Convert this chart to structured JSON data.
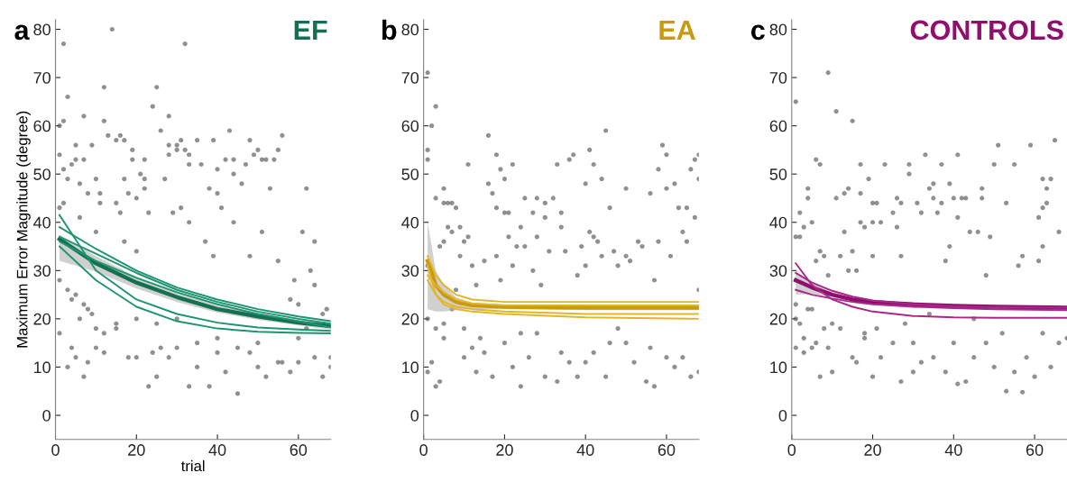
{
  "chart_data": [
    {
      "type": "scatter",
      "title": "EF",
      "ylabel": "Maximum Error Magnitude (degree)",
      "xlabel": "trial",
      "annotations": [
        "a"
      ],
      "xlim": [
        0,
        68
      ],
      "ylim": [
        -5,
        82
      ],
      "xticks": [
        0,
        20,
        40,
        60
      ],
      "yticks": [
        0,
        10,
        20,
        30,
        40,
        50,
        60,
        70,
        80
      ],
      "grid": false,
      "legend": false,
      "series": [
        {
          "marker": "circle",
          "color": "#555555",
          "x": [
            1,
            1,
            1,
            1,
            1,
            2,
            2,
            2,
            2,
            3,
            3,
            3,
            3,
            4,
            4,
            4,
            5,
            5,
            5,
            5,
            6,
            6,
            6,
            7,
            7,
            7,
            7,
            8,
            8,
            8,
            9,
            9,
            10,
            10,
            10,
            11,
            11,
            12,
            12,
            12,
            13,
            14,
            15,
            15,
            15,
            16,
            16,
            17,
            17,
            17,
            18,
            18,
            19,
            19,
            20,
            20,
            21,
            22,
            22,
            22,
            23,
            24,
            24,
            25,
            26,
            26,
            27,
            28,
            28,
            28,
            29,
            30,
            30,
            31,
            31,
            32,
            32,
            33,
            33,
            33,
            35,
            36,
            37,
            38,
            39,
            39,
            40,
            40,
            41,
            42,
            43,
            44,
            44,
            44,
            46,
            47,
            48,
            48,
            49,
            50,
            51,
            51,
            52,
            53,
            54,
            55,
            56,
            55,
            58,
            59,
            60,
            61,
            62,
            63,
            64,
            64,
            66,
            67,
            68,
            68,
            20,
            25,
            30,
            35,
            40,
            42,
            45,
            45,
            48,
            50,
            52,
            55,
            58,
            60,
            62,
            64,
            66,
            30,
            35,
            40,
            50,
            56,
            23,
            38,
            60,
            15,
            12,
            20,
            25,
            10,
            28,
            33
          ],
          "values": [
            60,
            54,
            43,
            28,
            17,
            77,
            61,
            51,
            44,
            66,
            49,
            26,
            10,
            52,
            24,
            14,
            56,
            53,
            25,
            12,
            48,
            41,
            20,
            62,
            53,
            23,
            8,
            46,
            22,
            11,
            56,
            21,
            49,
            38,
            14,
            46,
            44,
            68,
            61,
            13,
            58,
            80,
            57,
            44,
            19,
            58,
            42,
            57,
            49,
            36,
            46,
            12,
            55,
            53,
            45,
            34,
            50,
            53,
            49,
            47,
            42,
            64,
            13,
            68,
            59,
            14,
            49,
            62,
            56,
            54,
            42,
            56,
            55,
            57,
            43,
            77,
            55,
            54,
            52,
            40,
            57,
            52,
            36,
            47,
            57,
            33,
            51,
            46,
            43,
            53,
            59,
            53,
            50,
            40,
            48,
            52,
            57,
            33,
            54,
            55,
            38,
            53,
            53,
            47,
            53,
            55,
            58,
            32,
            24,
            28,
            23,
            38,
            47,
            30,
            36,
            27,
            21,
            22,
            12,
            10,
            12,
            8,
            14,
            10,
            16,
            9,
            4.5,
            14,
            13,
            10,
            8,
            11,
            9,
            11,
            18,
            12,
            8,
            20,
            15,
            13,
            15,
            11,
            6,
            6,
            16,
            18,
            17,
            20,
            19,
            18,
            12,
            6
          ]
        },
        {
          "type": "line",
          "marker": "none",
          "color": "#137050",
          "x": [
            1,
            10,
            20,
            30,
            40,
            50,
            60,
            68
          ],
          "values": [
            36.5,
            31.5,
            27.5,
            24.5,
            22,
            20.5,
            19.2,
            18.5
          ],
          "lower": [
            32,
            29.8,
            26.3,
            23.5,
            21.3,
            19.8,
            18.6,
            17.8
          ],
          "upper": [
            37.5,
            33,
            28.7,
            25.5,
            22.8,
            21.2,
            19.8,
            19.2
          ]
        },
        {
          "type": "line",
          "marker": "none",
          "color": "#1e9470",
          "x": [
            1,
            10,
            20,
            30,
            40,
            50,
            60,
            68
          ],
          "values": [
            41.5,
            30,
            24,
            21,
            19.2,
            18.2,
            17.8,
            17.5
          ]
        },
        {
          "type": "line",
          "marker": "none",
          "color": "#1e9470",
          "x": [
            1,
            10,
            20,
            30,
            40,
            50,
            60,
            68
          ],
          "values": [
            35,
            28,
            22.5,
            19.5,
            18,
            17.3,
            17.1,
            17
          ]
        },
        {
          "type": "line",
          "marker": "none",
          "color": "#1e9470",
          "x": [
            1,
            10,
            20,
            30,
            40,
            50,
            60,
            68
          ],
          "values": [
            39,
            34.5,
            30,
            26.5,
            24,
            22,
            20.5,
            19.5
          ]
        },
        {
          "type": "line",
          "marker": "none",
          "color": "#1e9470",
          "x": [
            1,
            10,
            20,
            30,
            40,
            50,
            60,
            68
          ],
          "values": [
            37,
            33.5,
            29.5,
            26,
            23.5,
            21.5,
            20,
            19
          ]
        },
        {
          "type": "line",
          "marker": "none",
          "color": "#1e9470",
          "x": [
            1,
            10,
            20,
            30,
            40,
            50,
            60,
            68
          ],
          "values": [
            36,
            32,
            28.5,
            25.5,
            23,
            21,
            19.5,
            18.2
          ]
        }
      ]
    },
    {
      "type": "scatter",
      "title": "EA",
      "annotations": [
        "b"
      ],
      "xlim": [
        0,
        68
      ],
      "ylim": [
        -5,
        82
      ],
      "xticks": [
        0,
        20,
        40,
        60
      ],
      "yticks": [
        0,
        10,
        20,
        30,
        40,
        50,
        60,
        70,
        80
      ],
      "grid": false,
      "legend": false,
      "series": [
        {
          "marker": "circle",
          "color": "#555555",
          "x": [
            1,
            1,
            1,
            1,
            1,
            1,
            2,
            2,
            3,
            3,
            3,
            3,
            4,
            4,
            5,
            5,
            5,
            5,
            6,
            6,
            7,
            7,
            7,
            8,
            8,
            9,
            9,
            10,
            10,
            11,
            11,
            12,
            12,
            13,
            13,
            15,
            15,
            16,
            16,
            17,
            18,
            18,
            18,
            19,
            19,
            20,
            20,
            21,
            21,
            22,
            22,
            23,
            24,
            24,
            25,
            25,
            27,
            27,
            28,
            28,
            29,
            30,
            30,
            31,
            32,
            33,
            34,
            34,
            35,
            36,
            37,
            38,
            39,
            40,
            40,
            41,
            41,
            42,
            42,
            43,
            44,
            44,
            45,
            46,
            47,
            48,
            50,
            50,
            51,
            53,
            54,
            56,
            57,
            58,
            58,
            59,
            60,
            60,
            61,
            62,
            63,
            64,
            65,
            65,
            66,
            67,
            67,
            68,
            68,
            68,
            5,
            10,
            14,
            17,
            20,
            22,
            26,
            28,
            30,
            33,
            36,
            38,
            40,
            42,
            45,
            48,
            50,
            52,
            55,
            57,
            60,
            62,
            64,
            66,
            68,
            24,
            34,
            46,
            56
          ],
          "values": [
            71,
            55,
            53,
            31,
            20,
            9,
            60,
            11,
            64,
            45,
            18,
            6,
            35,
            7,
            47,
            44,
            36,
            19,
            44,
            39,
            44,
            38,
            22,
            43,
            26,
            39,
            33,
            36,
            12,
            52,
            37,
            31,
            14,
            27,
            9,
            32,
            13,
            58,
            48,
            46,
            54,
            43,
            33,
            51,
            28,
            49,
            42,
            42,
            37,
            52,
            31,
            35,
            39,
            6,
            45,
            35,
            42,
            30,
            45,
            37,
            27,
            44,
            41,
            34,
            45,
            52,
            42,
            39,
            34,
            53,
            54,
            29,
            35,
            48,
            31,
            55,
            38,
            52,
            37,
            36,
            49,
            33,
            59,
            43,
            34,
            31,
            47,
            33,
            32,
            36,
            35,
            46,
            28,
            51,
            36,
            56,
            54,
            47,
            33,
            48,
            43,
            38,
            43,
            36,
            51,
            53,
            41,
            54,
            49,
            26,
            16,
            18,
            16,
            8,
            15,
            10,
            12,
            17,
            8,
            7,
            11,
            8,
            11,
            13,
            8,
            18,
            15,
            11,
            7,
            6,
            12,
            10,
            12,
            8,
            9,
            17,
            13,
            15,
            14
          ]
        },
        {
          "type": "line",
          "marker": "none",
          "color": "#c99a10",
          "x": [
            1,
            3,
            5,
            8,
            12,
            20,
            40,
            68
          ],
          "values": [
            32,
            27,
            25,
            23.5,
            22.8,
            22.5,
            22.3,
            22.3
          ],
          "lower": [
            22,
            21.5,
            21.5,
            21.8,
            22,
            22,
            21.8,
            21.8
          ],
          "upper": [
            40,
            30,
            27,
            24.5,
            23.3,
            23,
            22.8,
            22.8
          ]
        },
        {
          "type": "line",
          "marker": "none",
          "color": "#e3b52a",
          "x": [
            1,
            3,
            5,
            8,
            12,
            20,
            40,
            68
          ],
          "values": [
            33,
            29,
            27,
            25,
            24,
            23.5,
            23.5,
            23.5
          ]
        },
        {
          "type": "line",
          "marker": "none",
          "color": "#e3b52a",
          "x": [
            1,
            3,
            5,
            8,
            12,
            20,
            40,
            68
          ],
          "values": [
            28,
            25,
            23.5,
            22.5,
            22,
            21.5,
            21,
            21
          ]
        },
        {
          "type": "line",
          "marker": "none",
          "color": "#e3b52a",
          "x": [
            1,
            3,
            5,
            8,
            12,
            20,
            40,
            68
          ],
          "values": [
            31,
            25,
            23,
            22,
            21.5,
            21,
            20.3,
            20
          ]
        },
        {
          "type": "line",
          "marker": "none",
          "color": "#e3b52a",
          "x": [
            1,
            3,
            5,
            8,
            12,
            20,
            40,
            68
          ],
          "values": [
            29,
            27,
            25.5,
            24,
            23.2,
            22.8,
            22.8,
            22.8
          ]
        }
      ]
    },
    {
      "type": "scatter",
      "title": "CONTROLS",
      "annotations": [
        "c"
      ],
      "xlim": [
        0,
        68
      ],
      "ylim": [
        -5,
        82
      ],
      "xticks": [
        0,
        20,
        40,
        60
      ],
      "yticks": [
        0,
        10,
        20,
        30,
        40,
        50,
        60,
        70,
        80
      ],
      "grid": false,
      "legend": false,
      "series": [
        {
          "marker": "circle",
          "color": "#555555",
          "x": [
            1,
            1,
            1,
            1,
            1,
            2,
            2,
            2,
            3,
            3,
            3,
            4,
            4,
            4,
            5,
            5,
            6,
            6,
            6,
            7,
            7,
            7,
            8,
            8,
            9,
            9,
            9,
            10,
            11,
            11,
            12,
            12,
            13,
            13,
            14,
            14,
            15,
            15,
            16,
            16,
            17,
            17,
            17,
            18,
            18,
            19,
            20,
            20,
            20,
            21,
            21,
            22,
            23,
            25,
            26,
            26,
            27,
            27,
            29,
            29,
            30,
            31,
            32,
            33,
            34,
            35,
            35,
            36,
            37,
            37,
            38,
            39,
            39,
            40,
            41,
            41,
            42,
            43,
            44,
            46,
            47,
            47,
            48,
            49,
            50,
            51,
            53,
            55,
            56,
            57,
            59,
            61,
            61,
            62,
            62,
            62,
            63,
            63,
            64,
            65,
            66,
            5,
            10,
            15,
            18,
            20,
            22,
            25,
            27,
            30,
            32,
            35,
            38,
            40,
            41,
            43,
            45,
            48,
            50,
            53,
            55,
            57,
            58,
            60,
            62,
            64,
            66,
            68,
            45,
            52,
            28,
            34
          ],
          "values": [
            65,
            37,
            23,
            20,
            14,
            42,
            37,
            19,
            39,
            16,
            13,
            47,
            45,
            22,
            40,
            14,
            53,
            32,
            15,
            52,
            34,
            8,
            33,
            18,
            71,
            29,
            14,
            9,
            63,
            45,
            33,
            18,
            46,
            38,
            47,
            30,
            61,
            34,
            30,
            11,
            52,
            46,
            40,
            39,
            17,
            49,
            44,
            40,
            33,
            44,
            18,
            40,
            52,
            42,
            45,
            39,
            44,
            33,
            52,
            50,
            9,
            44,
            42,
            54,
            47,
            48,
            45,
            42,
            52,
            44,
            32,
            48,
            35,
            45,
            54,
            41,
            45,
            45,
            38,
            38,
            47,
            45,
            29,
            37,
            52,
            56,
            44,
            52,
            31,
            33,
            56,
            41,
            32,
            49,
            43,
            35,
            47,
            44,
            49,
            57,
            38,
            22,
            19,
            12,
            16,
            8,
            12,
            15,
            7,
            15,
            11,
            12,
            9,
            15,
            6.5,
            7,
            12,
            15,
            10,
            5,
            9,
            4.8,
            12,
            8,
            17,
            10,
            15,
            16,
            20,
            17,
            19,
            21
          ]
        },
        {
          "type": "line",
          "marker": "none",
          "color": "#8f0f6e",
          "x": [
            1,
            5,
            10,
            15,
            20,
            30,
            40,
            50,
            68
          ],
          "values": [
            28,
            26.5,
            25,
            24,
            23.5,
            23,
            22.7,
            22.5,
            22.3
          ],
          "lower": [
            25,
            25.2,
            24.5,
            23.7,
            23.2,
            22.8,
            22.5,
            22.3,
            22.1
          ],
          "upper": [
            30,
            27.5,
            25.5,
            24.4,
            23.8,
            23.2,
            22.9,
            22.7,
            22.5
          ]
        },
        {
          "type": "line",
          "marker": "none",
          "color": "#a8288a",
          "x": [
            1,
            5,
            10,
            15,
            20,
            30,
            40,
            50,
            68
          ],
          "values": [
            31.5,
            27,
            24,
            22.5,
            21.5,
            20.6,
            20.3,
            20.2,
            20.2
          ]
        },
        {
          "type": "line",
          "marker": "none",
          "color": "#a8288a",
          "x": [
            1,
            5,
            10,
            15,
            20,
            30,
            40,
            50,
            68
          ],
          "values": [
            29.5,
            27.5,
            25.8,
            24.6,
            23.8,
            23,
            22.6,
            22.4,
            22.3
          ]
        },
        {
          "type": "line",
          "marker": "none",
          "color": "#a8288a",
          "x": [
            1,
            5,
            10,
            15,
            20,
            30,
            40,
            50,
            68
          ],
          "values": [
            26,
            25,
            24.2,
            23.5,
            23,
            22.5,
            22.2,
            22,
            21.8
          ]
        }
      ]
    }
  ]
}
